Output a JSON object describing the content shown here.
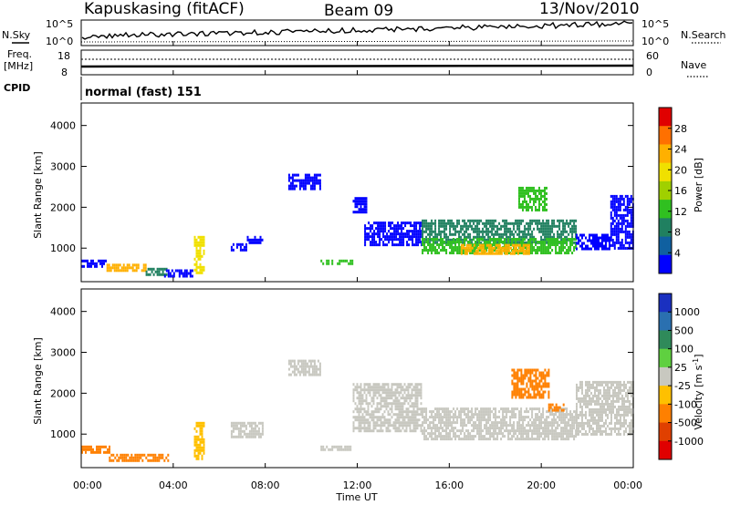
{
  "header": {
    "station": "Kapuskasing (fitACF)",
    "beam": "Beam 09",
    "date": "13/Nov/2010"
  },
  "top_panels": {
    "nsky_label": "N.Sky",
    "nsky_ticks": [
      "10^5",
      "10^0"
    ],
    "nsearch_label": "N.Search",
    "nsearch_ticks": [
      "10^5",
      "10^0"
    ],
    "freq_label_1": "Freq.",
    "freq_label_2": "[MHz]",
    "freq_ticks": [
      "18",
      "8"
    ],
    "nave_label": "Nave",
    "nave_ticks": [
      "60",
      "0"
    ],
    "cpid_label": "CPID",
    "cpid_text": "normal (fast) 151"
  },
  "chart_data": [
    {
      "type": "heatmap",
      "name": "power",
      "ylabel": "Slant Range [km]",
      "yticks": [
        "4000",
        "3000",
        "2000",
        "1000"
      ],
      "ytick_values": [
        4000,
        3000,
        2000,
        1000
      ],
      "ylim": [
        180,
        4550
      ],
      "xlim": [
        0,
        24
      ],
      "colorbar_label": "Power [dB]",
      "colorbar_ticks": [
        "28",
        "24",
        "20",
        "16",
        "12",
        "8",
        "4"
      ],
      "colorbar_colors": [
        "#e00000",
        "#ff7000",
        "#ffb000",
        "#f0e000",
        "#a0d000",
        "#30c020",
        "#208060",
        "#1060a0",
        "#0000ff"
      ],
      "echo_regions": [
        {
          "t0": 0.0,
          "t1": 1.1,
          "r0": 560,
          "r1": 720,
          "value": 4
        },
        {
          "t0": 1.1,
          "t1": 2.8,
          "r0": 440,
          "r1": 620,
          "value": 20
        },
        {
          "t0": 2.8,
          "t1": 3.8,
          "r0": 380,
          "r1": 520,
          "value": 8
        },
        {
          "t0": 3.6,
          "t1": 4.8,
          "r0": 330,
          "r1": 480,
          "value": 4
        },
        {
          "t0": 4.9,
          "t1": 5.3,
          "r0": 400,
          "r1": 1300,
          "value": 16
        },
        {
          "t0": 6.5,
          "t1": 7.2,
          "r0": 920,
          "r1": 1120,
          "value": 4
        },
        {
          "t0": 7.2,
          "t1": 7.9,
          "r0": 1100,
          "r1": 1300,
          "value": 4
        },
        {
          "t0": 9.0,
          "t1": 10.4,
          "r0": 2420,
          "r1": 2820,
          "value": 4
        },
        {
          "t0": 10.4,
          "t1": 11.8,
          "r0": 650,
          "r1": 720,
          "value": 12
        },
        {
          "t0": 11.8,
          "t1": 12.4,
          "r0": 1850,
          "r1": 2250,
          "value": 4
        },
        {
          "t0": 12.3,
          "t1": 14.8,
          "r0": 1050,
          "r1": 1650,
          "value": 4
        },
        {
          "t0": 14.8,
          "t1": 21.5,
          "r0": 1150,
          "r1": 1700,
          "value": 8
        },
        {
          "t0": 14.8,
          "t1": 21.5,
          "r0": 900,
          "r1": 1250,
          "value": 12
        },
        {
          "t0": 16.5,
          "t1": 19.5,
          "r0": 850,
          "r1": 1100,
          "value": 20
        },
        {
          "t0": 19.0,
          "t1": 20.2,
          "r0": 1900,
          "r1": 2500,
          "value": 12
        },
        {
          "t0": 21.5,
          "t1": 23.0,
          "r0": 1000,
          "r1": 1350,
          "value": 4
        },
        {
          "t0": 23.0,
          "t1": 24.0,
          "r0": 1000,
          "r1": 2300,
          "value": 4
        }
      ]
    },
    {
      "type": "heatmap",
      "name": "velocity",
      "ylabel": "Slant Range [km]",
      "yticks": [
        "4000",
        "3000",
        "2000",
        "1000"
      ],
      "ytick_values": [
        4000,
        3000,
        2000,
        1000
      ],
      "ylim": [
        180,
        4550
      ],
      "xlim": [
        0,
        24
      ],
      "xticks": [
        "00:00",
        "04:00",
        "08:00",
        "12:00",
        "16:00",
        "20:00",
        "00:00"
      ],
      "xtick_values": [
        0,
        4,
        8,
        12,
        16,
        20,
        24
      ],
      "xlabel": "Time UT",
      "colorbar_label": "Velocity [m s",
      "colorbar_exponent": "-1",
      "colorbar_label_close": "]",
      "colorbar_ticks": [
        "1000",
        "500",
        "100",
        "25",
        "-25",
        "-100",
        "-500",
        "-1000"
      ],
      "colorbar_colors": [
        "#1a30c0",
        "#2a70b0",
        "#2f8a5a",
        "#5fd040",
        "#c8c8c0",
        "#ffc000",
        "#ff8000",
        "#e04000",
        "#e00000"
      ],
      "echo_regions": [
        {
          "t0": 0.0,
          "t1": 1.2,
          "r0": 560,
          "r1": 720,
          "value": -150
        },
        {
          "t0": 1.2,
          "t1": 3.8,
          "r0": 330,
          "r1": 520,
          "value": -100
        },
        {
          "t0": 4.9,
          "t1": 5.3,
          "r0": 400,
          "r1": 1300,
          "value": -60
        },
        {
          "t0": 6.5,
          "t1": 7.9,
          "r0": 920,
          "r1": 1300,
          "value": 0
        },
        {
          "t0": 9.0,
          "t1": 10.4,
          "r0": 2420,
          "r1": 2820,
          "value": 0
        },
        {
          "t0": 10.4,
          "t1": 11.8,
          "r0": 650,
          "r1": 720,
          "value": 0
        },
        {
          "t0": 11.8,
          "t1": 14.8,
          "r0": 1050,
          "r1": 2250,
          "value": 0
        },
        {
          "t0": 14.8,
          "t1": 21.5,
          "r0": 900,
          "r1": 1650,
          "value": 0
        },
        {
          "t0": 18.7,
          "t1": 20.3,
          "r0": 1900,
          "r1": 2600,
          "value": -400
        },
        {
          "t0": 20.3,
          "t1": 21.0,
          "r0": 1550,
          "r1": 1750,
          "value": -150
        },
        {
          "t0": 21.5,
          "t1": 24.0,
          "r0": 1000,
          "r1": 2300,
          "value": 0
        }
      ]
    }
  ]
}
